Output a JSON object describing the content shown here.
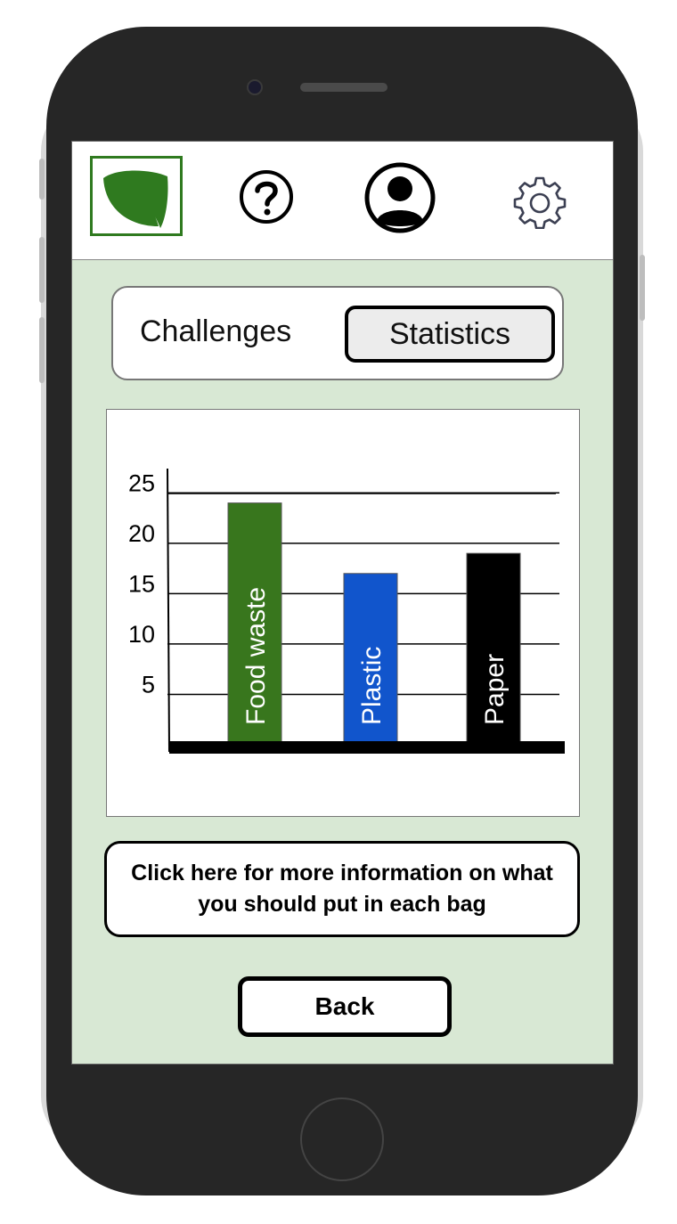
{
  "header": {
    "logo_icon": "leaf-icon",
    "help_icon": "question-circle-icon",
    "profile_icon": "user-avatar-icon",
    "settings_icon": "gear-icon",
    "brand_color": "#2f7a1f"
  },
  "tabs": {
    "challenges_label": "Challenges",
    "statistics_label": "Statistics",
    "active": "Statistics"
  },
  "chart_data": {
    "type": "bar",
    "categories": [
      "Food waste",
      "Plastic",
      "Paper"
    ],
    "values": [
      24,
      17,
      19
    ],
    "colors": [
      "#38761d",
      "#1155cc",
      "#000000"
    ],
    "label_colors": [
      "#ffffff",
      "#ffffff",
      "#ffffff"
    ],
    "yticks": [
      5,
      10,
      15,
      20,
      25
    ],
    "ylim": [
      0,
      26
    ],
    "title": "",
    "xlabel": "",
    "ylabel": "",
    "grid": true
  },
  "info_button": {
    "label": "Click here for more information on what you should put in each bag"
  },
  "back_button": {
    "label": "Back"
  }
}
